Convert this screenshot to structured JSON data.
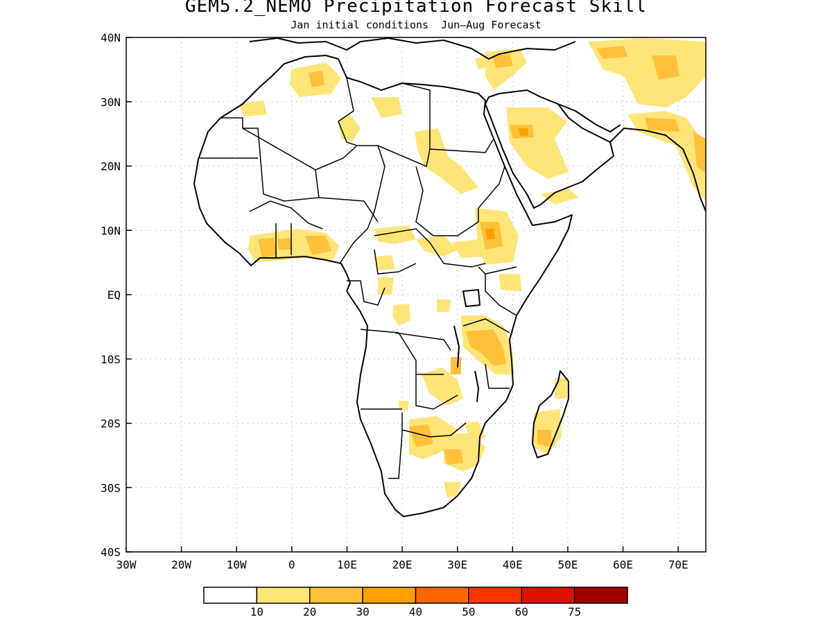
{
  "title": "GEM5.2_NEMO Precipitation Forecast Skill",
  "subtitle": "Jan initial conditions  Jun–Aug Forecast",
  "map": {
    "lon_range": [
      -30,
      75
    ],
    "lat_range": [
      -40,
      40
    ],
    "lat_labels": [
      "40N",
      "30N",
      "20N",
      "10N",
      "EQ",
      "10S",
      "20S",
      "30S",
      "40S"
    ],
    "lon_labels": [
      "30W",
      "20W",
      "10W",
      "0",
      "10E",
      "20E",
      "30E",
      "40E",
      "50E",
      "60E",
      "70E"
    ],
    "gridlines": "dotted",
    "region": "Africa, Arabian Peninsula, Madagascar"
  },
  "legend": {
    "ticks": [
      "10",
      "20",
      "30",
      "40",
      "50",
      "60",
      "75"
    ],
    "colors": [
      "#ffffff",
      "#ffe578",
      "#ffc03a",
      "#ff9f00",
      "#ff6600",
      "#ff3300",
      "#dd1100",
      "#a00000"
    ]
  }
}
